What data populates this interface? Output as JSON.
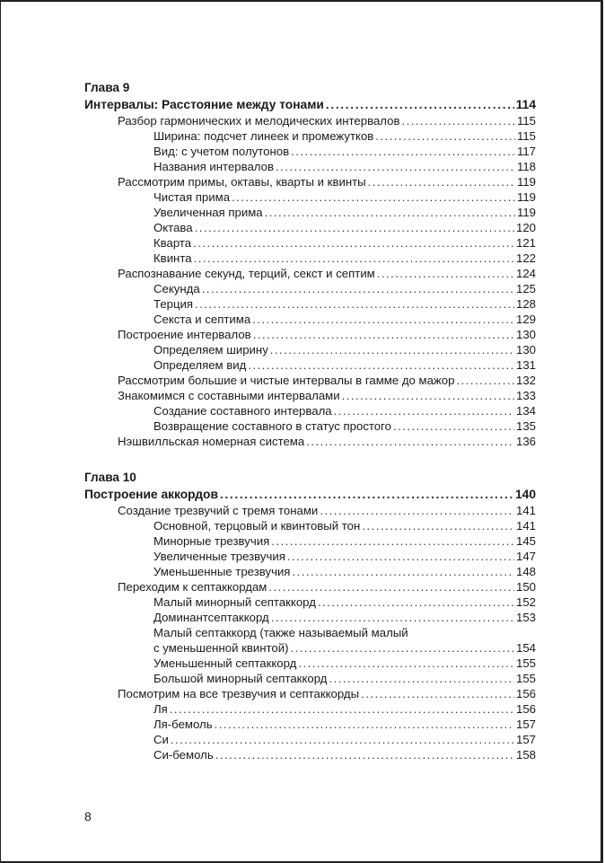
{
  "chapters": [
    {
      "label": "Глава 9",
      "title": "Интервалы: Расстояние между тонами",
      "page": "114",
      "entries": [
        {
          "level": 1,
          "title": "Разбор гармонических и мелодических интервалов",
          "page": "115"
        },
        {
          "level": 2,
          "title": "Ширина: подсчет линеек и промежутков",
          "page": "115"
        },
        {
          "level": 2,
          "title": "Вид: с учетом полутонов",
          "page": "117"
        },
        {
          "level": 2,
          "title": "Названия интервалов",
          "page": "118"
        },
        {
          "level": 1,
          "title": "Рассмотрим примы, октавы, кварты и квинты",
          "page": "119"
        },
        {
          "level": 2,
          "title": "Чистая прима",
          "page": "119"
        },
        {
          "level": 2,
          "title": "Увеличенная прима",
          "page": "119"
        },
        {
          "level": 2,
          "title": "Октава",
          "page": "120"
        },
        {
          "level": 2,
          "title": "Кварта",
          "page": "121"
        },
        {
          "level": 2,
          "title": "Квинта",
          "page": "122"
        },
        {
          "level": 1,
          "title": "Распознавание секунд, терций, секст и септим",
          "page": "124"
        },
        {
          "level": 2,
          "title": "Секунда",
          "page": "125"
        },
        {
          "level": 2,
          "title": "Терция",
          "page": "128"
        },
        {
          "level": 2,
          "title": "Секста и септима",
          "page": "129"
        },
        {
          "level": 1,
          "title": "Построение интервалов",
          "page": "130"
        },
        {
          "level": 2,
          "title": "Определяем ширину",
          "page": "130"
        },
        {
          "level": 2,
          "title": "Определяем вид",
          "page": "131"
        },
        {
          "level": 1,
          "title": "Рассмотрим большие и чистые интервалы в гамме до мажор",
          "page": "132"
        },
        {
          "level": 1,
          "title": "Знакомимся с составными интервалами",
          "page": "133"
        },
        {
          "level": 2,
          "title": "Создание составного интервала",
          "page": "134"
        },
        {
          "level": 2,
          "title": "Возвращение составного в статус простого",
          "page": "135"
        },
        {
          "level": 1,
          "title": "Нэшвилльская номерная система",
          "page": "136"
        }
      ]
    },
    {
      "label": "Глава 10",
      "title": "Построение аккордов",
      "page": "140",
      "entries": [
        {
          "level": 1,
          "title": "Создание трезвучий с тремя тонами",
          "page": "141"
        },
        {
          "level": 2,
          "title": "Основной, терцовый и квинтовый тон",
          "page": "141"
        },
        {
          "level": 2,
          "title": "Минорные трезвучия",
          "page": "145"
        },
        {
          "level": 2,
          "title": "Увеличенные трезвучия",
          "page": "147"
        },
        {
          "level": 2,
          "title": "Уменьшенные трезвучия",
          "page": "148"
        },
        {
          "level": 1,
          "title": "Переходим к септаккордам",
          "page": "150"
        },
        {
          "level": 2,
          "title": "Малый минорный септаккорд",
          "page": "152"
        },
        {
          "level": 2,
          "title": "Доминантсептаккорд",
          "page": "153"
        },
        {
          "level": 2,
          "title": "Малый септаккорд (также называемый малый",
          "title_cont": "с уменьшенной квинтой)",
          "page": "154"
        },
        {
          "level": 2,
          "title": "Уменьшенный септаккорд",
          "page": "155"
        },
        {
          "level": 2,
          "title": "Большой минорный септаккорд",
          "page": "155"
        },
        {
          "level": 1,
          "title": "Посмотрим на все трезвучия и септаккорды",
          "page": "156"
        },
        {
          "level": 2,
          "title": "Ля",
          "page": "156"
        },
        {
          "level": 2,
          "title": "Ля-бемоль",
          "page": "157"
        },
        {
          "level": 2,
          "title": "Си",
          "page": "157"
        },
        {
          "level": 2,
          "title": "Си-бемоль",
          "page": "158"
        }
      ]
    }
  ],
  "page_number": "8"
}
